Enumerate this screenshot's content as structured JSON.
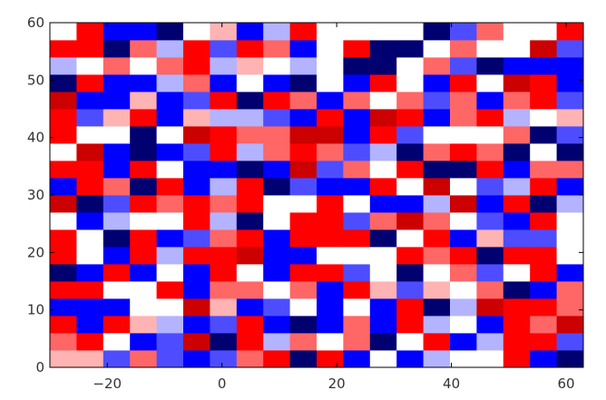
{
  "chart_data": {
    "type": "heatmap",
    "title": "",
    "xlabel": "",
    "ylabel": "",
    "colormap": "seismic",
    "color_range": [
      -1,
      1
    ],
    "xlim": [
      -30,
      63
    ],
    "ylim": [
      0,
      60
    ],
    "xticks": [
      -20,
      0,
      20,
      40,
      60
    ],
    "xtick_labels": [
      "−20",
      "0",
      "20",
      "40",
      "60"
    ],
    "yticks": [
      0,
      10,
      20,
      30,
      40,
      50,
      60
    ],
    "ytick_labels": [
      "0",
      "10",
      "20",
      "30",
      "40",
      "50",
      "60"
    ],
    "rows": 20,
    "cols": 20,
    "row_order": "bottom-to-top",
    "z": [
      [
        0.15,
        0.15,
        -0.35,
        0.3,
        -0.35,
        -0.5,
        -0.35,
        0.3,
        0.5,
        -0.9,
        0.5,
        -0.5,
        0,
        -0.5,
        -0.15,
        0,
        0,
        0.5,
        -0.5,
        -0.9
      ],
      [
        0.3,
        0.5,
        0,
        -0.5,
        -0.35,
        0.7,
        -0.9,
        0.5,
        -0.15,
        0.3,
        0,
        0.3,
        -0.9,
        0,
        0.5,
        -0.5,
        -0.15,
        0.5,
        0.5,
        -0.35
      ],
      [
        0.5,
        -0.5,
        0.5,
        0.15,
        -0.15,
        -0.5,
        -0.35,
        0.5,
        -0.5,
        -0.9,
        -0.5,
        0.3,
        -0.5,
        0.5,
        -0.15,
        0,
        -0.5,
        0.5,
        0.3,
        0.7
      ],
      [
        -0.5,
        -0.5,
        -0.5,
        0,
        0,
        0.7,
        0.15,
        -0.5,
        -0.35,
        0,
        -0.5,
        0,
        -0.5,
        0.5,
        -0.9,
        -0.15,
        0.7,
        0.5,
        0.5,
        0.3
      ],
      [
        0.5,
        0.5,
        0,
        0,
        0.5,
        -0.5,
        0.3,
        0.3,
        0,
        0.3,
        -0.5,
        0.5,
        0.15,
        -0.35,
        0.15,
        0,
        0.3,
        -0.9,
        -0.5,
        0.3
      ],
      [
        -0.9,
        -0.5,
        0.5,
        -0.5,
        0,
        -0.5,
        0.5,
        0,
        -0.5,
        0.5,
        0.5,
        -0.35,
        0,
        -0.9,
        0,
        0.3,
        -0.35,
        0,
        0.5,
        -0.5
      ],
      [
        0.5,
        0,
        -0.5,
        0.5,
        -0.15,
        0.5,
        0.5,
        0.7,
        -0.5,
        -0.5,
        0,
        0,
        0,
        0.5,
        0.3,
        0.5,
        -0.9,
        0.5,
        0.5,
        0
      ],
      [
        0.5,
        0,
        -0.9,
        0.5,
        -0.5,
        -0.35,
        0.3,
        0.5,
        -0.5,
        0.5,
        0.5,
        0.5,
        -0.9,
        0,
        0.5,
        -0.5,
        0.15,
        -0.35,
        -0.35,
        0
      ],
      [
        0,
        -0.5,
        -0.15,
        0,
        0,
        0.5,
        -0.15,
        -0.9,
        0,
        0.5,
        0.5,
        -0.35,
        0.3,
        0.7,
        0.3,
        0,
        -0.35,
        -0.5,
        0.5,
        0
      ],
      [
        0.7,
        -0.9,
        -0.35,
        0.5,
        0.3,
        0.5,
        0.3,
        0.5,
        0,
        0,
        0.5,
        0,
        -0.5,
        -0.5,
        -0.15,
        0.7,
        -0.5,
        0.5,
        -0.9,
        -0.15
      ],
      [
        -0.5,
        0.5,
        0.3,
        -0.9,
        0.5,
        -0.5,
        -0.15,
        0.5,
        -0.9,
        -0.35,
        -0.5,
        -0.5,
        0.5,
        0,
        0.7,
        0,
        -0.35,
        -0.15,
        0.5,
        -0.5
      ],
      [
        0.5,
        0.5,
        -0.5,
        0.5,
        0,
        -0.5,
        -0.5,
        -0.9,
        -0.5,
        0.7,
        -0.35,
        0.3,
        0,
        0.5,
        -0.9,
        -0.9,
        0.5,
        -0.5,
        0.3,
        0.3
      ],
      [
        0,
        0.7,
        -0.5,
        -0.9,
        -0.5,
        -0.35,
        0.5,
        -0.15,
        0.3,
        0.5,
        0.3,
        -0.35,
        -0.15,
        -0.9,
        0.3,
        0.5,
        0.3,
        -0.9,
        0,
        -0.9
      ],
      [
        0.5,
        0,
        0,
        -0.9,
        0,
        0.7,
        0.5,
        0.3,
        0.3,
        0.7,
        0.7,
        -0.5,
        0.5,
        -0.35,
        0,
        0,
        0,
        0.3,
        -0.9,
        -0.35
      ],
      [
        0.5,
        -0.35,
        0.15,
        0.5,
        -0.5,
        0.15,
        -0.15,
        -0.15,
        -0.35,
        -0.5,
        0.5,
        -0.5,
        0.7,
        0.5,
        -0.5,
        0.3,
        0.5,
        -0.15,
        0,
        0.15
      ],
      [
        0.7,
        -0.5,
        -0.5,
        0.15,
        -0.5,
        -0.35,
        0.5,
        -0.9,
        0.5,
        0.3,
        -0.5,
        0.3,
        0,
        0.3,
        -0.35,
        0.3,
        -0.5,
        0.3,
        0.5,
        -0.35
      ],
      [
        -0.9,
        0.5,
        -0.5,
        -0.5,
        -0.15,
        0.3,
        -0.5,
        0,
        -0.5,
        -0.9,
        0,
        -0.5,
        0.5,
        0,
        -0.5,
        0.5,
        0,
        0.7,
        0.5,
        -0.5
      ],
      [
        -0.15,
        0,
        0.3,
        0,
        0.3,
        0.5,
        -0.15,
        0.15,
        0,
        -0.15,
        0,
        -0.9,
        -0.9,
        0,
        0.3,
        -0.35,
        -0.9,
        -0.5,
        -0.5,
        -0.5
      ],
      [
        0.5,
        0.5,
        -0.9,
        0.3,
        -0.15,
        0.5,
        -0.35,
        0.5,
        0.3,
        -0.5,
        0,
        0.5,
        -0.9,
        -0.9,
        0,
        0.3,
        0,
        0,
        0.7,
        -0.35
      ],
      [
        0,
        0.5,
        -0.5,
        -0.5,
        -0.9,
        0,
        0.15,
        -0.5,
        -0.15,
        0.5,
        0,
        0,
        0,
        0,
        -0.9,
        -0.35,
        0.3,
        0,
        0,
        0.5
      ]
    ],
    "grid": false,
    "legend": "none"
  }
}
